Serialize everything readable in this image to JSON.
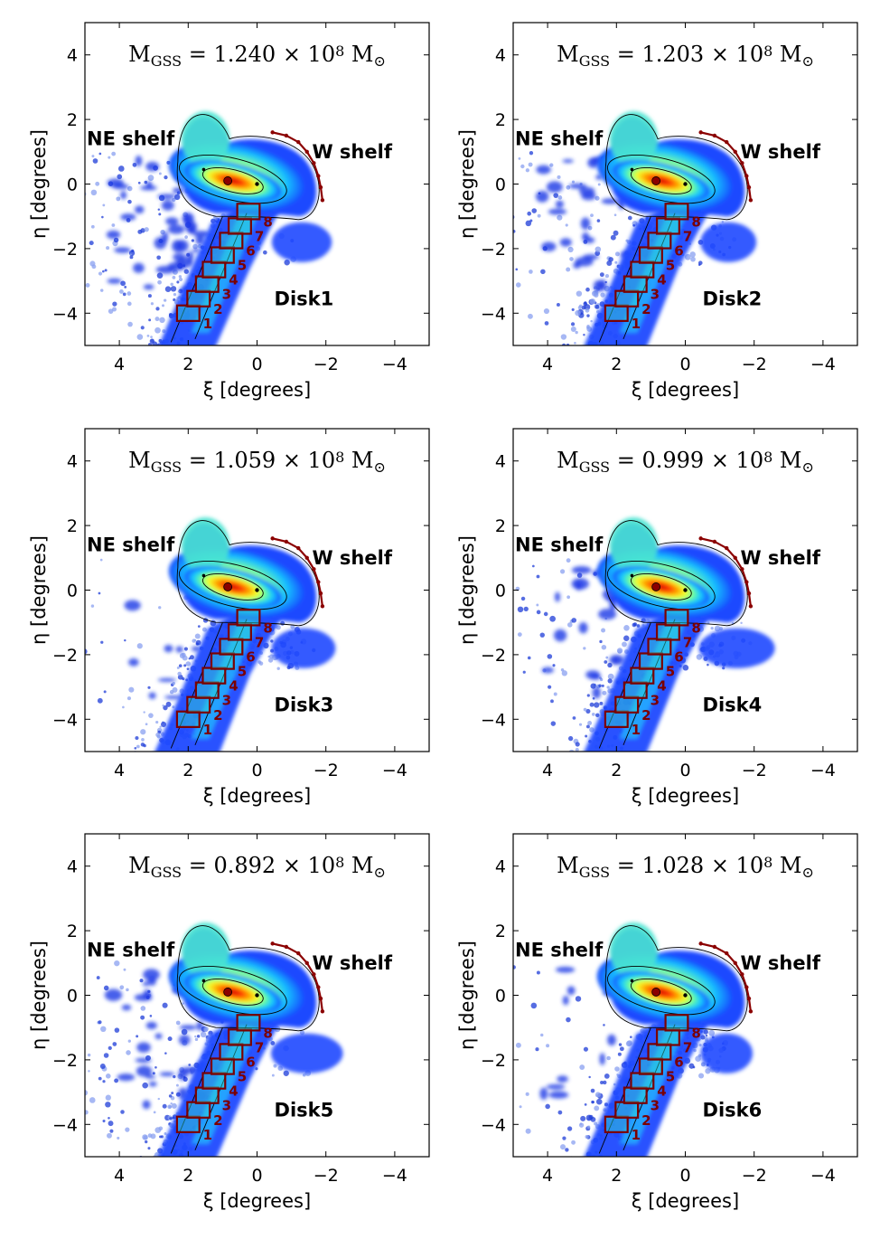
{
  "chart_data": [
    {
      "type": "scatter",
      "panel": "Disk1",
      "title": "M",
      "title_sub": "GSS",
      "title_eq": "= 1.240 × 10",
      "title_exp": "8",
      "title_unit": "M",
      "title_unit_sub": "⊙",
      "label": "Disk1",
      "annotations": [
        "NE shelf",
        "W shelf"
      ],
      "xlabel": "ξ [degrees]",
      "ylabel": "η [degrees]",
      "xlim": [
        5,
        -5
      ],
      "ylim": [
        -5,
        5
      ],
      "xticks": [
        "4",
        "2",
        "0",
        "−2",
        "−4"
      ],
      "yticks": [
        "4",
        "2",
        "0",
        "−2",
        "−4"
      ],
      "box_labels": [
        "1",
        "2",
        "3",
        "4",
        "5",
        "6",
        "7",
        "8"
      ],
      "ne_extent": 1.0,
      "sw_extent": 0.6,
      "stream_width": 0.55
    },
    {
      "type": "scatter",
      "panel": "Disk2",
      "title": "M",
      "title_sub": "GSS",
      "title_eq": "= 1.203 × 10",
      "title_exp": "8",
      "title_unit": "M",
      "title_unit_sub": "⊙",
      "label": "Disk2",
      "annotations": [
        "NE shelf",
        "W shelf"
      ],
      "xlabel": "ξ [degrees]",
      "ylabel": "η [degrees]",
      "xlim": [
        5,
        -5
      ],
      "ylim": [
        -5,
        5
      ],
      "xticks": [
        "4",
        "2",
        "0",
        "−2",
        "−4"
      ],
      "yticks": [
        "4",
        "2",
        "0",
        "−2",
        "−4"
      ],
      "box_labels": [
        "1",
        "2",
        "3",
        "4",
        "5",
        "6",
        "7",
        "8"
      ],
      "ne_extent": 0.7,
      "sw_extent": 0.5,
      "stream_width": 0.7
    },
    {
      "type": "scatter",
      "panel": "Disk3",
      "title": "M",
      "title_sub": "GSS",
      "title_eq": "= 1.059 × 10",
      "title_exp": "8",
      "title_unit": "M",
      "title_unit_sub": "⊙",
      "label": "Disk3",
      "annotations": [
        "NE shelf",
        "W shelf"
      ],
      "xlabel": "ξ [degrees]",
      "ylabel": "η [degrees]",
      "xlim": [
        5,
        -5
      ],
      "ylim": [
        -5,
        5
      ],
      "xticks": [
        "4",
        "2",
        "0",
        "−2",
        "−4"
      ],
      "yticks": [
        "4",
        "2",
        "0",
        "−2",
        "−4"
      ],
      "box_labels": [
        "1",
        "2",
        "3",
        "4",
        "5",
        "6",
        "7",
        "8"
      ],
      "ne_extent": 0.2,
      "sw_extent": 0.7,
      "stream_width": 0.75
    },
    {
      "type": "scatter",
      "panel": "Disk4",
      "title": "M",
      "title_sub": "GSS",
      "title_eq": "= 0.999 × 10",
      "title_exp": "8",
      "title_unit": "M",
      "title_unit_sub": "⊙",
      "label": "Disk4",
      "annotations": [
        "NE shelf",
        "W shelf"
      ],
      "xlabel": "ξ [degrees]",
      "ylabel": "η [degrees]",
      "xlim": [
        5,
        -5
      ],
      "ylim": [
        -5,
        5
      ],
      "xticks": [
        "4",
        "2",
        "0",
        "−2",
        "−4"
      ],
      "yticks": [
        "4",
        "2",
        "0",
        "−2",
        "−4"
      ],
      "box_labels": [
        "1",
        "2",
        "3",
        "4",
        "5",
        "6",
        "7",
        "8"
      ],
      "ne_extent": 0.5,
      "sw_extent": 1.0,
      "stream_width": 0.7
    },
    {
      "type": "scatter",
      "panel": "Disk5",
      "title": "M",
      "title_sub": "GSS",
      "title_eq": "= 0.892 × 10",
      "title_exp": "8",
      "title_unit": "M",
      "title_unit_sub": "⊙",
      "label": "Disk5",
      "annotations": [
        "NE shelf",
        "W shelf"
      ],
      "xlabel": "ξ [degrees]",
      "ylabel": "η [degrees]",
      "xlim": [
        5,
        -5
      ],
      "ylim": [
        -5,
        5
      ],
      "xticks": [
        "4",
        "2",
        "0",
        "−2",
        "−4"
      ],
      "yticks": [
        "4",
        "2",
        "0",
        "−2",
        "−4"
      ],
      "box_labels": [
        "1",
        "2",
        "3",
        "4",
        "5",
        "6",
        "7",
        "8"
      ],
      "ne_extent": 0.8,
      "sw_extent": 0.9,
      "stream_width": 0.6
    },
    {
      "type": "scatter",
      "panel": "Disk6",
      "title": "M",
      "title_sub": "GSS",
      "title_eq": "= 1.028 × 10",
      "title_exp": "8",
      "title_unit": "M",
      "title_unit_sub": "⊙",
      "label": "Disk6",
      "annotations": [
        "NE shelf",
        "W shelf"
      ],
      "xlabel": "ξ [degrees]",
      "ylabel": "η [degrees]",
      "xlim": [
        5,
        -5
      ],
      "ylim": [
        -5,
        5
      ],
      "xticks": [
        "4",
        "2",
        "0",
        "−2",
        "−4"
      ],
      "yticks": [
        "4",
        "2",
        "0",
        "−2",
        "−4"
      ],
      "box_labels": [
        "1",
        "2",
        "3",
        "4",
        "5",
        "6",
        "7",
        "8"
      ],
      "ne_extent": 0.3,
      "sw_extent": 0.4,
      "stream_width": 0.7
    }
  ],
  "colors": {
    "box": "#7b0000",
    "shelf_arc": "#8b0000",
    "axis": "#000000"
  }
}
